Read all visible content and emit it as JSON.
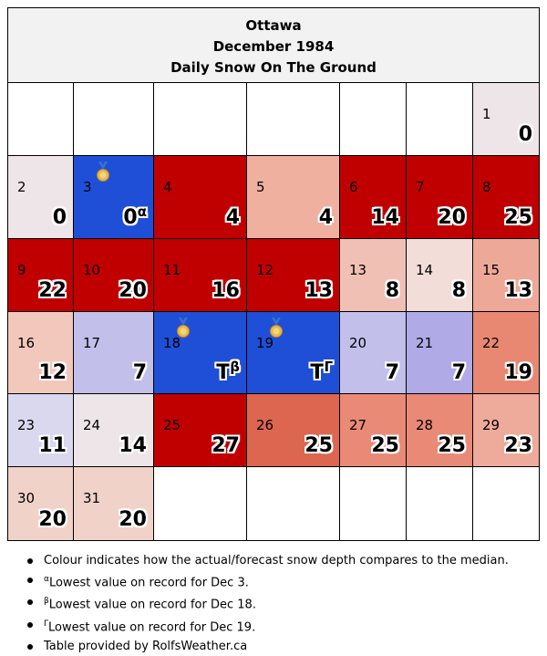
{
  "header": {
    "city": "Ottawa",
    "month": "December 1984",
    "subtitle": "Daily Snow On The Ground"
  },
  "calendar": {
    "weeks": [
      [
        null,
        null,
        null,
        null,
        null,
        null,
        {
          "day": "1",
          "value": "0",
          "color": "#ede5e7"
        }
      ],
      [
        {
          "day": "2",
          "value": "0",
          "color": "#ede5e7"
        },
        {
          "day": "3",
          "value": "0",
          "mark": "α",
          "medal": true,
          "color": "#1f4fd6"
        },
        {
          "day": "4",
          "value": "4",
          "color": "#c00000"
        },
        {
          "day": "5",
          "value": "4",
          "color": "#efb0a0"
        },
        {
          "day": "6",
          "value": "14",
          "color": "#c00000"
        },
        {
          "day": "7",
          "value": "20",
          "color": "#c00000"
        },
        {
          "day": "8",
          "value": "25",
          "color": "#c00000"
        }
      ],
      [
        {
          "day": "9",
          "value": "22",
          "color": "#c00000"
        },
        {
          "day": "10",
          "value": "20",
          "color": "#c00000"
        },
        {
          "day": "11",
          "value": "16",
          "color": "#c00000"
        },
        {
          "day": "12",
          "value": "13",
          "color": "#c00000"
        },
        {
          "day": "13",
          "value": "8",
          "color": "#f0c0b4"
        },
        {
          "day": "14",
          "value": "8",
          "color": "#f2ddd9"
        },
        {
          "day": "15",
          "value": "13",
          "color": "#eda898"
        }
      ],
      [
        {
          "day": "16",
          "value": "12",
          "color": "#f2c8bd"
        },
        {
          "day": "17",
          "value": "7",
          "color": "#c2bfea"
        },
        {
          "day": "18",
          "value": "T",
          "mark": "β",
          "medal": true,
          "color": "#1f4fd6"
        },
        {
          "day": "19",
          "value": "T",
          "mark": "Γ",
          "medal": true,
          "color": "#1f4fd6"
        },
        {
          "day": "20",
          "value": "7",
          "color": "#c2bfea"
        },
        {
          "day": "21",
          "value": "7",
          "color": "#b0aae6"
        },
        {
          "day": "22",
          "value": "19",
          "color": "#e88872"
        }
      ],
      [
        {
          "day": "23",
          "value": "11",
          "color": "#d9d8ef"
        },
        {
          "day": "24",
          "value": "14",
          "color": "#ede5e7"
        },
        {
          "day": "25",
          "value": "27",
          "color": "#c00000"
        },
        {
          "day": "26",
          "value": "25",
          "color": "#dc6650"
        },
        {
          "day": "27",
          "value": "25",
          "color": "#e98a76"
        },
        {
          "day": "28",
          "value": "25",
          "color": "#e98a76"
        },
        {
          "day": "29",
          "value": "23",
          "color": "#eeaa9a"
        }
      ],
      [
        {
          "day": "30",
          "value": "20",
          "color": "#f0d2c9"
        },
        {
          "day": "31",
          "value": "20",
          "color": "#f0d2c9"
        },
        null,
        null,
        null,
        null,
        null
      ]
    ]
  },
  "notes": [
    {
      "sup": "",
      "text": "Colour indicates how the actual/forecast snow depth compares to the median."
    },
    {
      "sup": "α",
      "text": "Lowest value on record for Dec 3."
    },
    {
      "sup": "β",
      "text": "Lowest value on record for Dec 18."
    },
    {
      "sup": "Γ",
      "text": "Lowest value on record for Dec 19."
    },
    {
      "sup": "",
      "text": "Table provided by RolfsWeather.ca"
    }
  ]
}
